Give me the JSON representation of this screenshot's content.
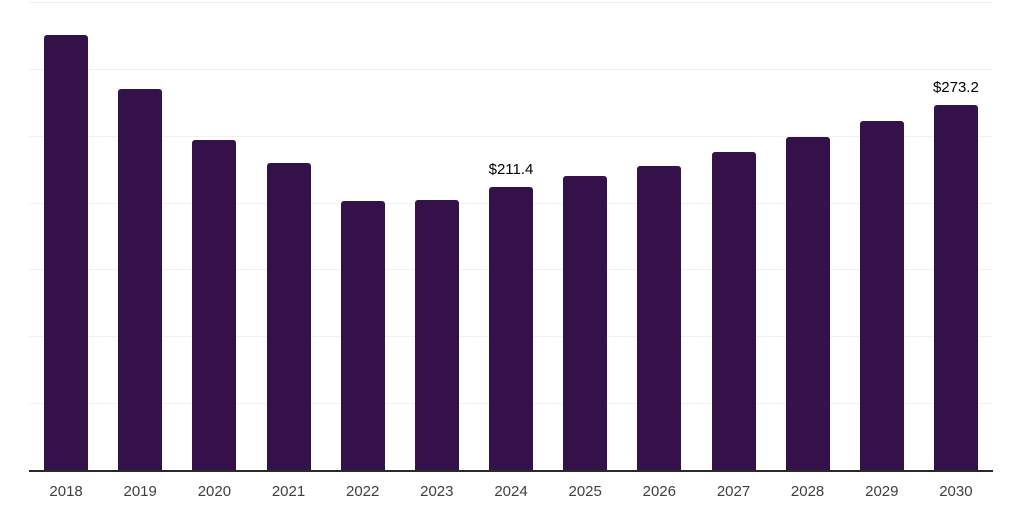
{
  "chart_data": {
    "type": "bar",
    "title": "",
    "xlabel": "",
    "ylabel": "",
    "categories": [
      "2018",
      "2019",
      "2020",
      "2021",
      "2022",
      "2023",
      "2024",
      "2025",
      "2026",
      "2027",
      "2028",
      "2029",
      "2030"
    ],
    "values": [
      325.3,
      284.9,
      246.8,
      229.4,
      201.4,
      201.9,
      211.4,
      219.9,
      227.6,
      237.8,
      248.8,
      261.0,
      273.2
    ],
    "data_labels": [
      "",
      "",
      "",
      "",
      "",
      "",
      "$211.4",
      "",
      "",
      "",
      "",
      "",
      "$273.2"
    ],
    "ylim": [
      0,
      350
    ],
    "grid": true,
    "grid_interval": 50,
    "legend": "none",
    "colors": {
      "bar": "#35114a",
      "axis_line": "#2a2a2a",
      "gridline": "#f1f1f1",
      "value_label": "#000000",
      "tick_label": "#3f3f3f"
    }
  }
}
